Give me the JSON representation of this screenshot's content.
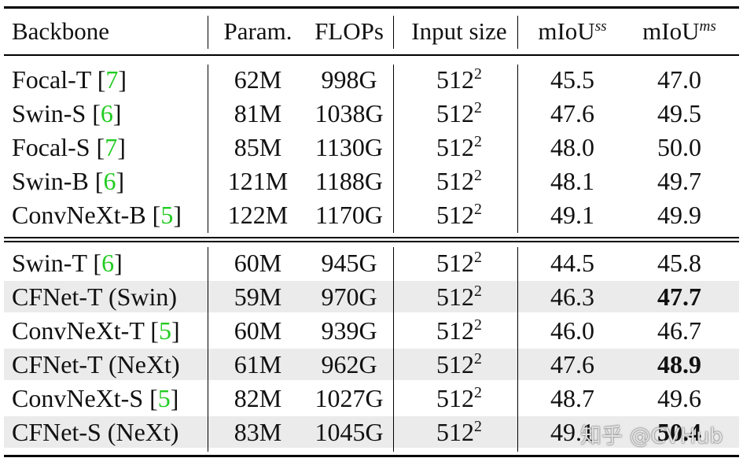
{
  "table": {
    "headers": {
      "backbone": "Backbone",
      "param": "Param.",
      "flops": "FLOPs",
      "input_size": "Input size",
      "miou_ss": "mIoU",
      "miou_ss_sup": "ss",
      "miou_ms": "mIoU",
      "miou_ms_sup": "ms"
    },
    "group1": [
      {
        "backbone": "Focal-T",
        "cite": "7",
        "param": "62M",
        "flops": "998G",
        "input": "512",
        "input_exp": "2",
        "miou_ss": "45.5",
        "miou_ms": "47.0"
      },
      {
        "backbone": "Swin-S",
        "cite": "6",
        "param": "81M",
        "flops": "1038G",
        "input": "512",
        "input_exp": "2",
        "miou_ss": "47.6",
        "miou_ms": "49.5"
      },
      {
        "backbone": "Focal-S",
        "cite": "7",
        "param": "85M",
        "flops": "1130G",
        "input": "512",
        "input_exp": "2",
        "miou_ss": "48.0",
        "miou_ms": "50.0"
      },
      {
        "backbone": "Swin-B",
        "cite": "6",
        "param": "121M",
        "flops": "1188G",
        "input": "512",
        "input_exp": "2",
        "miou_ss": "48.1",
        "miou_ms": "49.7"
      },
      {
        "backbone": "ConvNeXt-B",
        "cite": "5",
        "param": "122M",
        "flops": "1170G",
        "input": "512",
        "input_exp": "2",
        "miou_ss": "49.1",
        "miou_ms": "49.9"
      }
    ],
    "group2": [
      {
        "backbone": "Swin-T",
        "cite": "6",
        "param": "60M",
        "flops": "945G",
        "input": "512",
        "input_exp": "2",
        "miou_ss": "44.5",
        "miou_ms": "45.8"
      },
      {
        "backbone": "CFNet-T (Swin)",
        "cite": "",
        "param": "59M",
        "flops": "970G",
        "input": "512",
        "input_exp": "2",
        "miou_ss": "46.3",
        "miou_ms": "47.7"
      },
      {
        "backbone": "ConvNeXt-T",
        "cite": "5",
        "param": "60M",
        "flops": "939G",
        "input": "512",
        "input_exp": "2",
        "miou_ss": "46.0",
        "miou_ms": "46.7"
      },
      {
        "backbone": "CFNet-T (NeXt)",
        "cite": "",
        "param": "61M",
        "flops": "962G",
        "input": "512",
        "input_exp": "2",
        "miou_ss": "47.6",
        "miou_ms": "48.9"
      },
      {
        "backbone": "ConvNeXt-S",
        "cite": "5",
        "param": "82M",
        "flops": "1027G",
        "input": "512",
        "input_exp": "2",
        "miou_ss": "48.7",
        "miou_ms": "49.6"
      },
      {
        "backbone": "CFNet-S (NeXt)",
        "cite": "",
        "param": "83M",
        "flops": "1045G",
        "input": "512",
        "input_exp": "2",
        "miou_ss": "49.1",
        "miou_ms": "50.4"
      }
    ]
  },
  "watermark": "知乎 @CVHub"
}
